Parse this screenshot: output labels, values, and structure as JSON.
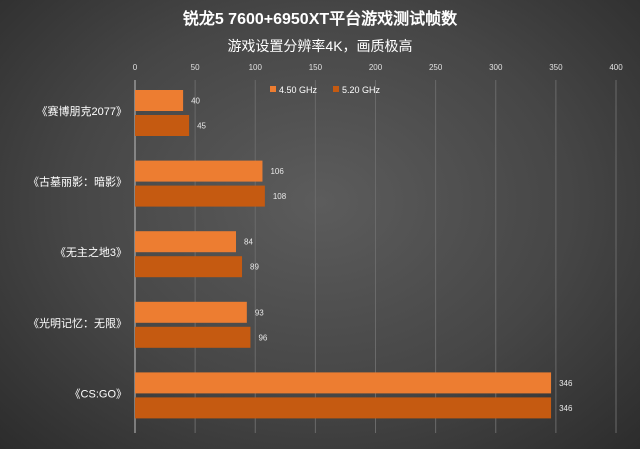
{
  "chart_data": {
    "type": "bar",
    "orientation": "horizontal",
    "title": "锐龙5 7600+6950XT平台游戏测试帧数",
    "subtitle": "游戏设置分辨率4K，画质极高",
    "categories": [
      "《赛博朋克2077》",
      "《古墓丽影：暗影》",
      "《无主之地3》",
      "《光明记忆：无限》",
      "《CS:GO》"
    ],
    "series": [
      {
        "name": "4.50 GHz",
        "color": "#ED7D31",
        "values": [
          40,
          106,
          84,
          93,
          346
        ]
      },
      {
        "name": "5.20 GHz",
        "color": "#C55A11",
        "values": [
          45,
          108,
          89,
          96,
          346
        ]
      }
    ],
    "xlim": [
      0,
      400
    ],
    "xticks": [
      "0",
      "50",
      "100",
      "150",
      "200",
      "250",
      "300",
      "350",
      "400"
    ],
    "xaxis_position": "top",
    "grid": true,
    "legend": "top-center"
  }
}
